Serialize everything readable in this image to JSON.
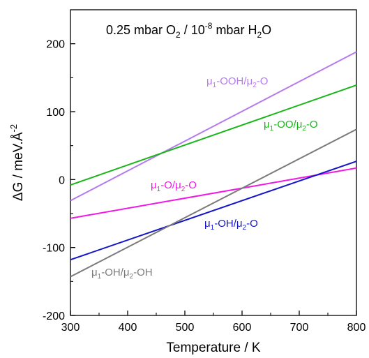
{
  "chart_data": {
    "type": "line",
    "title_parts": {
      "a": "0.25 mbar O",
      "a_sub": "2",
      "b": " / 10",
      "b_sup": "-8",
      "c": " mbar H",
      "c_sub": "2",
      "d": "O"
    },
    "xlabel": "Temperature / K",
    "ylabel_parts": {
      "a": "ΔG / meV.Å",
      "sup": "-2"
    },
    "xlim": [
      300,
      800
    ],
    "ylim": [
      -200,
      250
    ],
    "xticks": [
      300,
      400,
      500,
      600,
      700,
      800
    ],
    "yticks": [
      -200,
      -100,
      0,
      100,
      200
    ],
    "grid": false,
    "legend": "none",
    "series": [
      {
        "label_parts": {
          "m1": "μ",
          "s1": "1",
          "t1": "-OOH/",
          "m2": "μ",
          "s2": "2",
          "t2": "-O"
        },
        "color": "#b57aeb",
        "x": [
          300,
          800
        ],
        "y": [
          -31,
          188
        ]
      },
      {
        "label_parts": {
          "m1": "μ",
          "s1": "1",
          "t1": "-OO/",
          "m2": "μ",
          "s2": "2",
          "t2": "-O"
        },
        "color": "#1ab51a",
        "x": [
          300,
          800
        ],
        "y": [
          -8,
          139
        ]
      },
      {
        "label_parts": {
          "m1": "μ",
          "s1": "1",
          "t1": "-O/",
          "m2": "μ",
          "s2": "2",
          "t2": "-O"
        },
        "color": "#f018e6",
        "x": [
          300,
          800
        ],
        "y": [
          -57,
          17
        ]
      },
      {
        "label_parts": {
          "m1": "μ",
          "s1": "1",
          "t1": "-OH/",
          "m2": "μ",
          "s2": "2",
          "t2": "-O"
        },
        "color": "#1414c8",
        "x": [
          300,
          800
        ],
        "y": [
          -118,
          27
        ]
      },
      {
        "label_parts": {
          "m1": "μ",
          "s1": "1",
          "t1": "-OH/",
          "m2": "μ",
          "s2": "2",
          "t2": "-OH"
        },
        "color": "#7a7a7a",
        "x": [
          300,
          800
        ],
        "y": [
          -143,
          74
        ]
      }
    ]
  }
}
